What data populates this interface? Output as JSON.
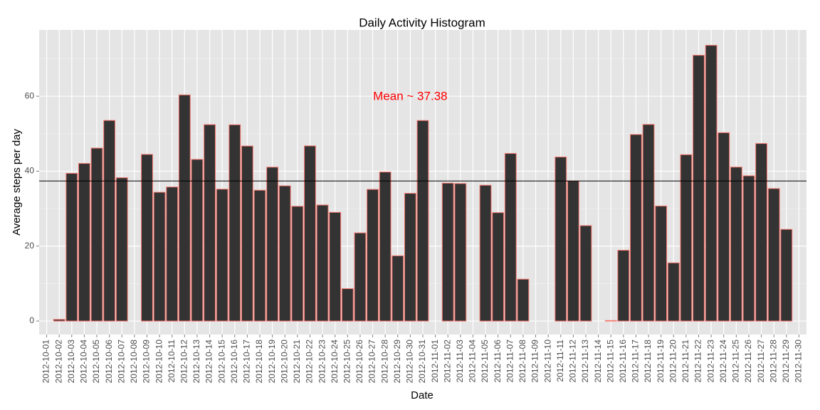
{
  "chart_data": {
    "type": "bar",
    "title": "Daily Activity Histogram",
    "x_label": "Date",
    "y_label": "Average steps per day",
    "categories": [
      "2012-10-01",
      "2012-10-02",
      "2012-10-03",
      "2012-10-04",
      "2012-10-05",
      "2012-10-06",
      "2012-10-07",
      "2012-10-08",
      "2012-10-09",
      "2012-10-10",
      "2012-10-11",
      "2012-10-12",
      "2012-10-13",
      "2012-10-14",
      "2012-10-15",
      "2012-10-16",
      "2012-10-17",
      "2012-10-18",
      "2012-10-19",
      "2012-10-20",
      "2012-10-21",
      "2012-10-22",
      "2012-10-23",
      "2012-10-24",
      "2012-10-25",
      "2012-10-26",
      "2012-10-27",
      "2012-10-28",
      "2012-10-29",
      "2012-10-30",
      "2012-10-31",
      "2012-11-01",
      "2012-11-02",
      "2012-11-03",
      "2012-11-04",
      "2012-11-05",
      "2012-11-06",
      "2012-11-07",
      "2012-11-08",
      "2012-11-09",
      "2012-11-10",
      "2012-11-11",
      "2012-11-12",
      "2012-11-13",
      "2012-11-14",
      "2012-11-15",
      "2012-11-16",
      "2012-11-17",
      "2012-11-18",
      "2012-11-19",
      "2012-11-20",
      "2012-11-21",
      "2012-11-22",
      "2012-11-23",
      "2012-11-24",
      "2012-11-25",
      "2012-11-26",
      "2012-11-27",
      "2012-11-28",
      "2012-11-29",
      "2012-11-30"
    ],
    "values": [
      null,
      0.44,
      39.42,
      42.07,
      46.16,
      53.54,
      38.25,
      null,
      44.48,
      34.38,
      35.78,
      60.35,
      43.15,
      52.42,
      35.2,
      52.38,
      46.71,
      34.92,
      41.07,
      36.09,
      30.63,
      46.74,
      30.97,
      29.01,
      8.65,
      23.53,
      35.14,
      39.78,
      17.42,
      34.09,
      53.52,
      null,
      36.81,
      36.7,
      null,
      36.25,
      28.94,
      44.73,
      11.18,
      null,
      null,
      43.78,
      37.38,
      25.47,
      null,
      0.14,
      18.89,
      49.79,
      52.47,
      30.7,
      15.53,
      44.4,
      70.93,
      73.59,
      50.27,
      41.09,
      38.76,
      47.38,
      35.36,
      24.47,
      null
    ],
    "color": "#333333",
    "edge_color": "#f8766d",
    "mean_line": 37.38,
    "annotation": "Mean ~ 37.38",
    "annotation_color": "#ff0000",
    "ylim": [
      -3.6,
      77.7
    ],
    "yticks": [
      0,
      20,
      40,
      60
    ],
    "grid": true
  }
}
